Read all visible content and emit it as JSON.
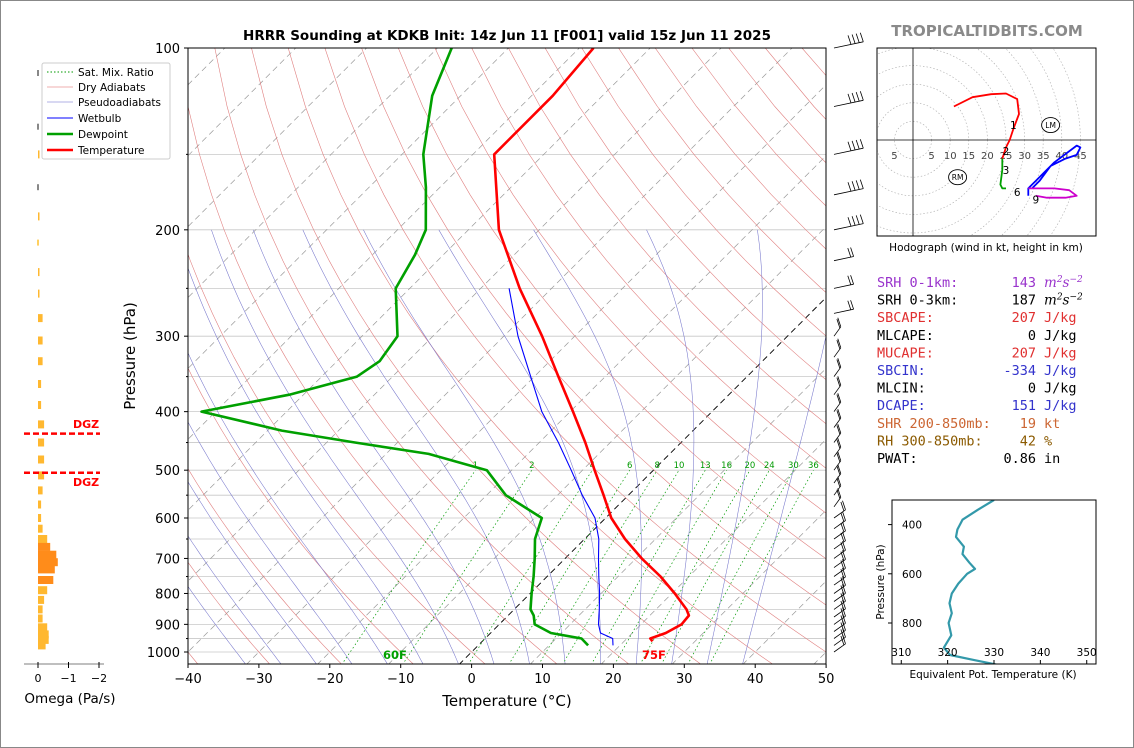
{
  "title": "HRRR Sounding at KDKB Init: 14z Jun 11 [F001] valid 15z Jun 11 2025",
  "brand": "TROPICALTIDBITS.COM",
  "colors": {
    "temperature": "#ff0000",
    "dewpoint": "#00a000",
    "wetbulb": "#0000ff",
    "dry": "#e06060",
    "moist": "#6666cc",
    "mix": "#009900",
    "omega": "#ffa500",
    "hodo_red": "#ff0000",
    "hodo_green": "#00a000",
    "hodo_blue": "#0000ff",
    "hodo_magenta": "#cc00cc",
    "theta_e": "#3399aa"
  },
  "legend": [
    "Sat. Mix. Ratio",
    "Dry Adiabats",
    "Pseudoadiabats",
    "Wetbulb",
    "Dewpoint",
    "Temperature"
  ],
  "skewt": {
    "xlabel": "Temperature (°C)",
    "ylabel": "Pressure (hPa)",
    "x_ticks": [
      "−40",
      "−30",
      "−20",
      "−10",
      "0",
      "10",
      "20",
      "30",
      "40",
      "50"
    ],
    "y_ticks": [
      "100",
      "200",
      "300",
      "400",
      "500",
      "600",
      "700",
      "800",
      "900",
      "1000"
    ],
    "surface_dewpoint_label": "60F",
    "surface_temp_label": "75F",
    "mix_ratio_labels": [
      "1",
      "2",
      "4",
      "6",
      "8",
      "10",
      "13",
      "16",
      "20",
      "24",
      "30",
      "36"
    ]
  },
  "omega": {
    "xlabel": "Omega (Pa/s)",
    "x_ticks": [
      "0",
      "−1",
      "−2"
    ],
    "dgz_label": "DGZ"
  },
  "hodograph": {
    "caption": "Hodograph (wind in kt, height in km)",
    "ring_labels": [
      "5",
      "5",
      "10",
      "15",
      "20",
      "25",
      "30",
      "35",
      "40",
      "45"
    ],
    "height_labels": [
      "1",
      "2",
      "3",
      "6",
      "9"
    ],
    "rm_label": "RM",
    "lm_label": "LM"
  },
  "indices": [
    {
      "name": "SRH 0-1km:",
      "value": "143",
      "unit": "m2s-2",
      "color": "#9933cc"
    },
    {
      "name": "SRH 0-3km:",
      "value": "187",
      "unit": "m2s-2",
      "color": "#000000"
    },
    {
      "name": "SBCAPE:",
      "value": "207",
      "unit": "J/kg",
      "color": "#e03030"
    },
    {
      "name": "MLCAPE:",
      "value": "0",
      "unit": "J/kg",
      "color": "#000000"
    },
    {
      "name": "MUCAPE:",
      "value": "207",
      "unit": "J/kg",
      "color": "#e03030"
    },
    {
      "name": "SBCIN:",
      "value": "-334",
      "unit": "J/kg",
      "color": "#3333cc"
    },
    {
      "name": "MLCIN:",
      "value": "0",
      "unit": "J/kg",
      "color": "#000000"
    },
    {
      "name": "DCAPE:",
      "value": "151",
      "unit": "J/kg",
      "color": "#3333cc"
    },
    {
      "name": "SHR 200-850mb:",
      "value": "19",
      "unit": "kt",
      "color": "#cc6633"
    },
    {
      "name": "RH 300-850mb:",
      "value": "42",
      "unit": "%",
      "color": "#8b5a00"
    },
    {
      "name": "PWAT:",
      "value": "0.86",
      "unit": "in",
      "color": "#000000"
    }
  ],
  "theta_e_panel": {
    "xlabel": "Equivalent Pot. Temperature (K)",
    "ylabel": "Pressure (hPa)",
    "x_ticks": [
      "310",
      "320",
      "330",
      "340",
      "350"
    ],
    "y_ticks": [
      "400",
      "600",
      "800"
    ]
  },
  "chart_data": [
    {
      "type": "line",
      "name": "skew-t",
      "title": "HRRR Sounding at KDKB Init: 14z Jun 11 [F001] valid 15z Jun 11 2025",
      "xlabel": "Temperature (°C)",
      "ylabel": "Pressure (hPa)",
      "xlim": [
        -40,
        50
      ],
      "ylim": [
        1050,
        100
      ],
      "y_scale": "log",
      "series": [
        {
          "name": "Temperature",
          "p": [
            960,
            950,
            930,
            900,
            870,
            850,
            800,
            750,
            700,
            650,
            600,
            550,
            500,
            450,
            400,
            350,
            300,
            250,
            200,
            150,
            120,
            100
          ],
          "t": [
            24.0,
            23.3,
            24.7,
            25.7,
            25.5,
            24.3,
            20.4,
            16.0,
            10.8,
            5.7,
            0.8,
            -3.5,
            -8.3,
            -13.5,
            -19.6,
            -26.6,
            -34.6,
            -44.5,
            -55.7,
            -67.0,
            -67.0,
            -68.0
          ]
        },
        {
          "name": "Dewpoint",
          "p": [
            975,
            950,
            930,
            900,
            870,
            850,
            800,
            750,
            700,
            650,
            600,
            550,
            500,
            470,
            450,
            430,
            400,
            375,
            350,
            330,
            300,
            250,
            220,
            200,
            170,
            150,
            120,
            100
          ],
          "t": [
            15.5,
            13.6,
            8.5,
            5.0,
            3.6,
            2.3,
            0.2,
            -1.9,
            -4.3,
            -7.0,
            -9.0,
            -17.3,
            -23.5,
            -34.0,
            -46.0,
            -58.0,
            -72.0,
            -62.0,
            -55.0,
            -54.0,
            -55.0,
            -62.0,
            -64.0,
            -66.0,
            -72.0,
            -77.0,
            -84.0,
            -88.0
          ]
        },
        {
          "name": "Wetbulb",
          "p": [
            975,
            950,
            930,
            900,
            870,
            850,
            800,
            750,
            700,
            650,
            600,
            550,
            500,
            450,
            400,
            350,
            300,
            250
          ],
          "t": [
            19.0,
            18.0,
            15.5,
            14.0,
            12.8,
            12.0,
            9.8,
            7.3,
            4.7,
            2.0,
            -1.5,
            -6.5,
            -11.6,
            -17.3,
            -24.0,
            -30.5,
            -38.0,
            -46.0
          ]
        }
      ]
    },
    {
      "type": "bar",
      "name": "omega",
      "xlabel": "Omega (Pa/s)",
      "xlim": [
        0,
        -2
      ],
      "dgz_pressures": [
        435,
        505
      ],
      "p": [
        110,
        135,
        150,
        170,
        190,
        210,
        235,
        255,
        280,
        305,
        330,
        360,
        390,
        420,
        450,
        480,
        510,
        540,
        570,
        600,
        625,
        650,
        670,
        690,
        710,
        730,
        760,
        790,
        820,
        850,
        880,
        910,
        935,
        955,
        975
      ],
      "omega": [
        0,
        0,
        -0.05,
        0,
        -0.05,
        0,
        -0.05,
        -0.05,
        -0.15,
        -0.15,
        -0.15,
        -0.1,
        -0.1,
        -0.2,
        -0.2,
        -0.2,
        -0.2,
        -0.15,
        -0.1,
        -0.1,
        -0.15,
        -0.3,
        -0.4,
        -0.6,
        -0.65,
        -0.55,
        -0.5,
        -0.3,
        -0.2,
        -0.15,
        -0.15,
        -0.3,
        -0.35,
        -0.35,
        -0.25
      ]
    },
    {
      "type": "line",
      "name": "hodograph",
      "xlim": [
        -10,
        50
      ],
      "ylim": [
        -25,
        25
      ],
      "segments": [
        {
          "color": "#ff0000",
          "u": [
            11,
            16,
            21,
            25,
            28,
            28.5,
            27,
            26,
            25,
            24
          ],
          "v": [
            9,
            11.5,
            12.3,
            12.5,
            11,
            7,
            3,
            0,
            -2,
            -5
          ]
        },
        {
          "color": "#00a000",
          "u": [
            24,
            24,
            23.5,
            24,
            25
          ],
          "v": [
            -5,
            -8,
            -12,
            -13,
            -13
          ]
        },
        {
          "color": "#0000ff",
          "u": [
            32,
            34,
            37,
            41,
            44,
            45,
            44,
            38,
            33,
            32,
            31,
            31
          ],
          "v": [
            -13,
            -11,
            -7,
            -5,
            -4,
            -2,
            -1.5,
            -6,
            -11,
            -12,
            -13,
            -15
          ]
        },
        {
          "color": "#cc00cc",
          "u": [
            31,
            33,
            38,
            42,
            44,
            41,
            36,
            33
          ],
          "v": [
            -13,
            -13,
            -13,
            -13.5,
            -15,
            -15.5,
            -15.5,
            -15
          ]
        }
      ],
      "height_markers": [
        {
          "label": "1",
          "u": 27,
          "v": 4
        },
        {
          "label": "2",
          "u": 25,
          "v": -3
        },
        {
          "label": "3",
          "u": 25,
          "v": -8
        },
        {
          "label": "6",
          "u": 28,
          "v": -14
        },
        {
          "label": "9",
          "u": 33,
          "v": -16
        }
      ],
      "rm": {
        "u": 12,
        "v": -10
      },
      "lm": {
        "u": 37,
        "v": 4
      }
    },
    {
      "type": "line",
      "name": "theta-e",
      "xlabel": "Equivalent Pot. Temperature (K)",
      "ylabel": "Pressure (hPa)",
      "xlim": [
        308,
        352
      ],
      "ylim": [
        1000,
        300
      ],
      "theta_e": [
        330.0,
        326.5,
        323.2,
        322.1,
        321.8,
        323.5,
        323.2,
        324.7,
        325.9,
        324.2,
        322.3,
        320.9,
        320.4,
        320.9,
        320.2,
        320.8,
        319.2,
        320.5,
        325.6,
        332.0
      ],
      "p": [
        300,
        340,
        380,
        420,
        450,
        490,
        520,
        555,
        580,
        600,
        640,
        680,
        720,
        760,
        800,
        850,
        900,
        930,
        950,
        975
      ]
    }
  ]
}
